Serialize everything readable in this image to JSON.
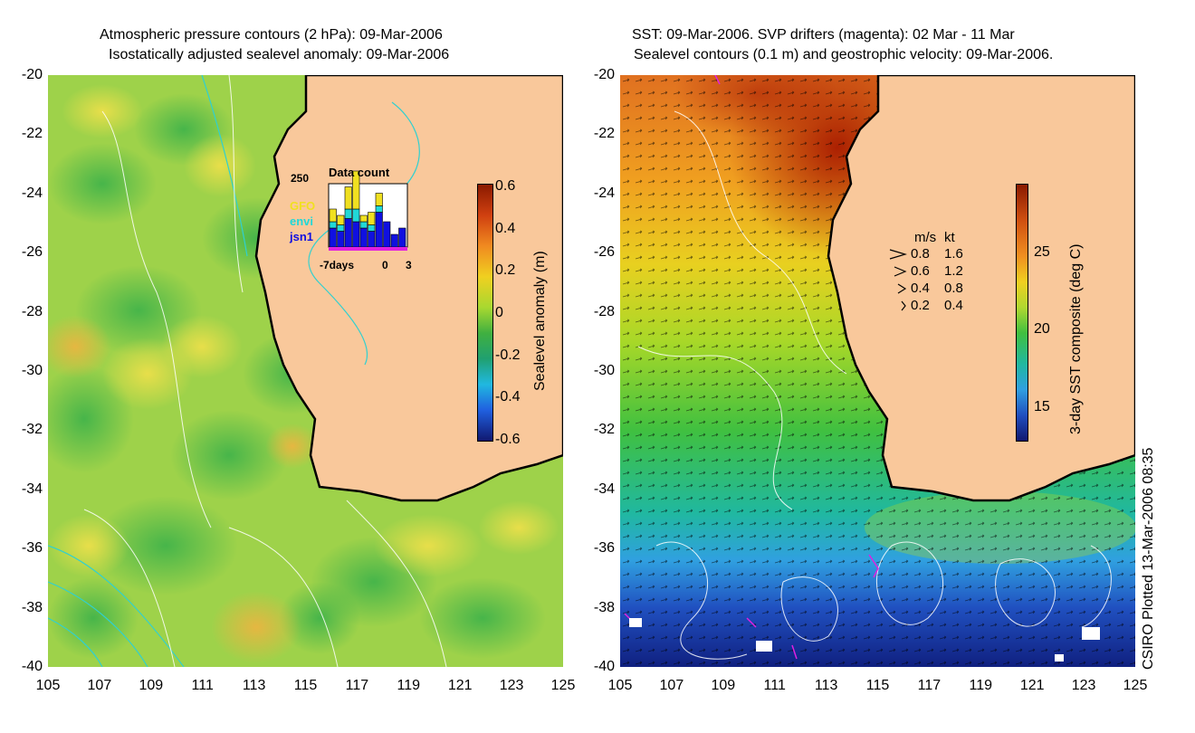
{
  "left_panel": {
    "title_line1": "Atmospheric pressure contours (2 hPa): 09-Mar-2006",
    "title_line2": "Isostatically adjusted sealevel anomaly: 09-Mar-2006",
    "y_ticks": [
      "-20",
      "-22",
      "-24",
      "-26",
      "-28",
      "-30",
      "-32",
      "-34",
      "-36",
      "-38",
      "-40"
    ],
    "x_ticks": [
      "105",
      "107",
      "109",
      "111",
      "113",
      "115",
      "117",
      "119",
      "121",
      "123",
      "125"
    ],
    "colorbar": {
      "label": "Sealevel anomaly (m)",
      "ticks": [
        "0.6",
        "0.4",
        "0.2",
        "0",
        "-0.2",
        "-0.4",
        "-0.6"
      ]
    },
    "inset": {
      "title": "Data count",
      "y_max_label": "250",
      "x_labels": [
        "-7days",
        "0",
        "3"
      ],
      "legend": [
        {
          "name": "GFO",
          "color": "#f0e020"
        },
        {
          "name": "envi",
          "color": "#20d8d8"
        },
        {
          "name": "jsn1",
          "color": "#1010e0"
        }
      ],
      "bars": [
        {
          "jsn1": 0.3,
          "envi": 0.1,
          "gfo": 0.2
        },
        {
          "jsn1": 0.25,
          "envi": 0.1,
          "gfo": 0.15
        },
        {
          "jsn1": 0.45,
          "envi": 0.15,
          "gfo": 0.35
        },
        {
          "jsn1": 0.4,
          "envi": 0.2,
          "gfo": 0.6
        },
        {
          "jsn1": 0.3,
          "envi": 0.1,
          "gfo": 0.1
        },
        {
          "jsn1": 0.25,
          "envi": 0.1,
          "gfo": 0.2
        },
        {
          "jsn1": 0.55,
          "envi": 0.1,
          "gfo": 0.2
        },
        {
          "jsn1": 0.4,
          "envi": 0.0,
          "gfo": 0.0
        },
        {
          "jsn1": 0.2,
          "envi": 0.0,
          "gfo": 0.0
        },
        {
          "jsn1": 0.3,
          "envi": 0.0,
          "gfo": 0.0
        }
      ]
    }
  },
  "right_panel": {
    "title_line1": "SST: 09-Mar-2006. SVP drifters (magenta): 02 Mar - 11 Mar",
    "title_line2": "Sealevel contours (0.1 m) and geostrophic velocity: 09-Mar-2006.",
    "y_ticks": [
      "-20",
      "-22",
      "-24",
      "-26",
      "-28",
      "-30",
      "-32",
      "-34",
      "-36",
      "-38",
      "-40"
    ],
    "x_ticks": [
      "105",
      "107",
      "109",
      "111",
      "113",
      "115",
      "117",
      "119",
      "121",
      "123",
      "125"
    ],
    "colorbar": {
      "label": "3-day SST composite (deg C)",
      "ticks": [
        "25",
        "20",
        "15"
      ]
    },
    "velocity_legend": {
      "header_ms": "m/s",
      "header_kt": "kt",
      "rows": [
        {
          "ms": "0.8",
          "kt": "1.6"
        },
        {
          "ms": "0.6",
          "kt": "1.2"
        },
        {
          "ms": "0.4",
          "kt": "0.8"
        },
        {
          "ms": "0.2",
          "kt": "0.4"
        }
      ]
    }
  },
  "credit": "CSIRO Plotted 13-Mar-2006 08:35",
  "colors": {
    "land": "#f9c89b",
    "coast": "#000000",
    "pressure_contour": "#30d0d0",
    "sealevel_contour": "#ffffff",
    "drifter": "#e020e0"
  }
}
